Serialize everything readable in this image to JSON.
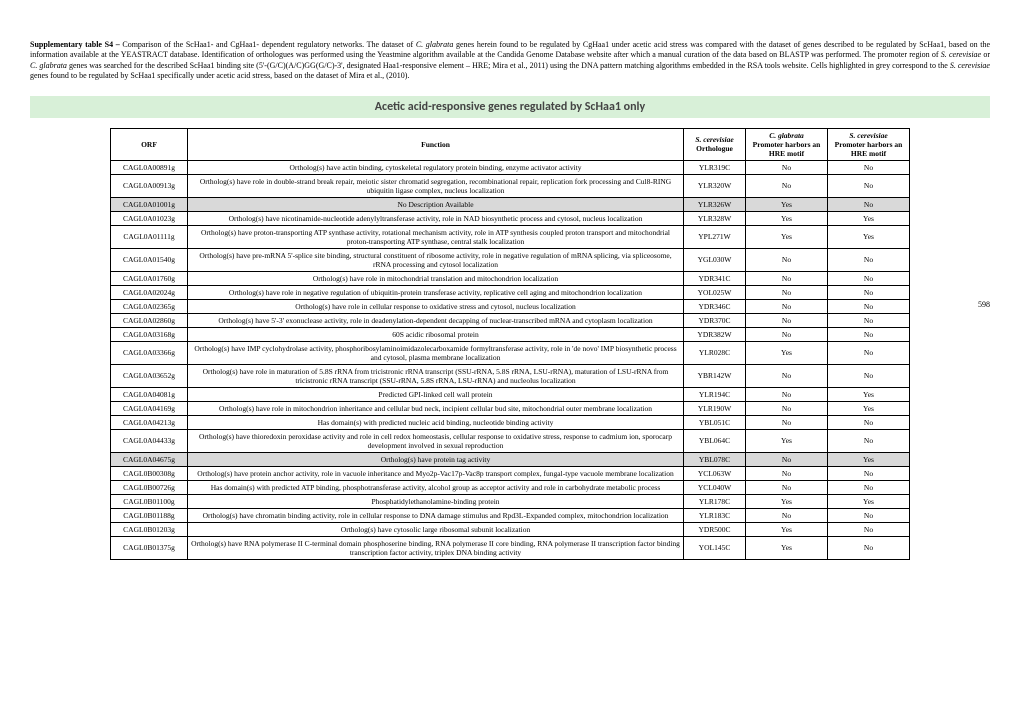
{
  "caption": {
    "label": "Supplementary table S4 – ",
    "text_pre": "Comparison of the ScHaa1- and CgHaa1- dependent regulatory networks. The dataset of ",
    "italic1": "C. glabrata",
    "text_mid1": " genes herein found to be regulated by CgHaa1 under acetic acid stress was compared with the dataset of genes described to be regulated by ScHaa1, based on the information available at the YEASTRACT database. Identification of orthologues was performed using the Yeastmine algorithm available at the Candida Genome Database website after which a manual curation of the data based on BLASTP was performed. The promoter region of ",
    "italic2": "S. cerevisiae",
    "text_mid2": " or ",
    "italic3": "C. glabrata",
    "text_mid3": " genes was searched for the described ScHaa1 binding site (5'-(G/C)(A/C)GG(G/C)-3', designated Haa1-responsive element – HRE; Mira et al., 2011) using the DNA pattern matching algorithms embedded in the RSA tools website. Cells highlighted in grey correspond to the ",
    "italic4": "S. cerevisiae",
    "text_end": " genes found to be regulated by ScHaa1 specifically under acetic acid stress, based on the dataset of Mira et al., (2010)."
  },
  "section_title": "Acetic acid-responsive genes regulated by ScHaa1 only",
  "headers": {
    "orf": "ORF",
    "function": "Function",
    "ortho_top": "S. cerevisiae",
    "ortho_bot": "Orthologue",
    "cg_top": "C. glabrata",
    "cg_bot": "Promoter harbors an HRE motif",
    "sc_top": "S. cerevisiae",
    "sc_bot": "Promoter harbors an HRE motif"
  },
  "page_label": "598",
  "rows": [
    {
      "orf": "CAGL0A00891g",
      "func": "Ortholog(s) have actin binding, cytoskeletal regulatory protein binding, enzyme activator activity",
      "orth": "YLR319C",
      "cg": "No",
      "sc": "No",
      "hl": false
    },
    {
      "orf": "CAGL0A00913g",
      "func": "Ortholog(s) have role in double-strand break repair, meiotic sister chromatid segregation, recombinational repair, replication fork processing and Cul8-RING ubiquitin ligase complex, nucleus localization",
      "orth": "YLR320W",
      "cg": "No",
      "sc": "No",
      "hl": false
    },
    {
      "orf": "CAGL0A01001g",
      "func": "No Description Available",
      "orth": "YLR326W",
      "cg": "Yes",
      "sc": "No",
      "hl": true
    },
    {
      "orf": "CAGL0A01023g",
      "func": "Ortholog(s) have nicotinamide-nucleotide adenylyltransferase activity, role in NAD biosynthetic process and cytosol, nucleus localization",
      "orth": "YLR328W",
      "cg": "Yes",
      "sc": "Yes",
      "hl": false
    },
    {
      "orf": "CAGL0A01111g",
      "func": "Ortholog(s) have proton-transporting ATP synthase activity, rotational mechanism activity, role in ATP synthesis coupled proton transport and mitochondrial proton-transporting ATP synthase, central stalk localization",
      "orth": "YPL271W",
      "cg": "Yes",
      "sc": "Yes",
      "hl": false
    },
    {
      "orf": "CAGL0A01540g",
      "func": "Ortholog(s) have pre-mRNA 5'-splice site binding, structural constituent of ribosome activity, role in negative regulation of mRNA splicing, via spliceosome, rRNA processing and cytosol localization",
      "orth": "YGL030W",
      "cg": "No",
      "sc": "No",
      "hl": false
    },
    {
      "orf": "CAGL0A01760g",
      "func": "Ortholog(s) have role in mitochondrial translation and mitochondrion localization",
      "orth": "YDR341C",
      "cg": "No",
      "sc": "No",
      "hl": false
    },
    {
      "orf": "CAGL0A02024g",
      "func": "Ortholog(s) have role in negative regulation of ubiquitin-protein transferase activity, replicative cell aging and mitochondrion localization",
      "orth": "YOL025W",
      "cg": "No",
      "sc": "No",
      "hl": false
    },
    {
      "orf": "CAGL0A02365g",
      "func": "Ortholog(s) have role in cellular response to oxidative stress and cytosol, nucleus localization",
      "orth": "YDR346C",
      "cg": "No",
      "sc": "No",
      "hl": false
    },
    {
      "orf": "CAGL0A02860g",
      "func": "Ortholog(s) have 5'-3' exonuclease activity, role in deadenylation-dependent decapping of nuclear-transcribed mRNA and cytoplasm localization",
      "orth": "YDR370C",
      "cg": "No",
      "sc": "No",
      "hl": false
    },
    {
      "orf": "CAGL0A03168g",
      "func": "60S acidic ribosomal protein",
      "orth": "YDR382W",
      "cg": "No",
      "sc": "No",
      "hl": false
    },
    {
      "orf": "CAGL0A03366g",
      "func": "Ortholog(s) have IMP cyclohydrolase activity, phosphoribosylaminoimidazolecarboxamide formyltransferase activity, role in 'de novo' IMP biosynthetic process and cytosol, plasma membrane localization",
      "orth": "YLR028C",
      "cg": "Yes",
      "sc": "No",
      "hl": false
    },
    {
      "orf": "CAGL0A03652g",
      "func": "Ortholog(s) have role in maturation of 5.8S rRNA from tricistronic rRNA transcript (SSU-rRNA, 5.8S rRNA, LSU-rRNA), maturation of LSU-rRNA from tricistronic rRNA transcript (SSU-rRNA, 5.8S rRNA, LSU-rRNA) and nucleolus localization",
      "orth": "YBR142W",
      "cg": "No",
      "sc": "No",
      "hl": false
    },
    {
      "orf": "CAGL0A04081g",
      "func": "Predicted GPI-linked cell wall protein",
      "orth": "YLR194C",
      "cg": "No",
      "sc": "Yes",
      "hl": false
    },
    {
      "orf": "CAGL0A04169g",
      "func": "Ortholog(s) have role in mitochondrion inheritance and cellular bud neck, incipient cellular bud site, mitochondrial outer membrane localization",
      "orth": "YLR190W",
      "cg": "No",
      "sc": "Yes",
      "hl": false
    },
    {
      "orf": "CAGL0A04213g",
      "func": "Has domain(s) with predicted nucleic acid binding, nucleotide binding activity",
      "orth": "YBL051C",
      "cg": "No",
      "sc": "No",
      "hl": false
    },
    {
      "orf": "CAGL0A04433g",
      "func": "Ortholog(s) have thioredoxin peroxidase activity and role in cell redox homeostasis, cellular response to oxidative stress, response to cadmium ion, sporocarp development involved in sexual reproduction",
      "orth": "YBL064C",
      "cg": "Yes",
      "sc": "No",
      "hl": false
    },
    {
      "orf": "CAGL0A04675g",
      "func": "Ortholog(s) have protein tag activity",
      "orth": "YBL078C",
      "cg": "No",
      "sc": "Yes",
      "hl": true
    },
    {
      "orf": "CAGL0B00308g",
      "func": "Ortholog(s) have protein anchor activity, role in vacuole inheritance and Myo2p-Vac17p-Vac8p transport complex, fungal-type vacuole membrane localization",
      "orth": "YCL063W",
      "cg": "No",
      "sc": "No",
      "hl": false
    },
    {
      "orf": "CAGL0B00726g",
      "func": "Has domain(s) with predicted ATP binding, phosphotransferase activity, alcohol group as acceptor activity and role in carbohydrate metabolic process",
      "orth": "YCL040W",
      "cg": "No",
      "sc": "No",
      "hl": false
    },
    {
      "orf": "CAGL0B01100g",
      "func": "Phosphatidylethanolamine-binding protein",
      "orth": "YLR178C",
      "cg": "Yes",
      "sc": "Yes",
      "hl": false
    },
    {
      "orf": "CAGL0B01188g",
      "func": "Ortholog(s) have chromatin binding activity, role in cellular response to DNA damage stimulus and Rpd3L-Expanded complex, mitochondrion localization",
      "orth": "YLR183C",
      "cg": "No",
      "sc": "No",
      "hl": false
    },
    {
      "orf": "CAGL0B01203g",
      "func": "Ortholog(s) have cytosolic large ribosomal subunit localization",
      "orth": "YDR500C",
      "cg": "Yes",
      "sc": "No",
      "hl": false
    },
    {
      "orf": "CAGL0B01375g",
      "func": "Ortholog(s) have RNA polymerase II C-terminal domain phosphoserine binding, RNA polymerase II core binding, RNA polymerase II transcription factor binding transcription factor activity, triplex DNA binding activity",
      "orth": "YOL145C",
      "cg": "Yes",
      "sc": "No",
      "hl": false
    }
  ]
}
